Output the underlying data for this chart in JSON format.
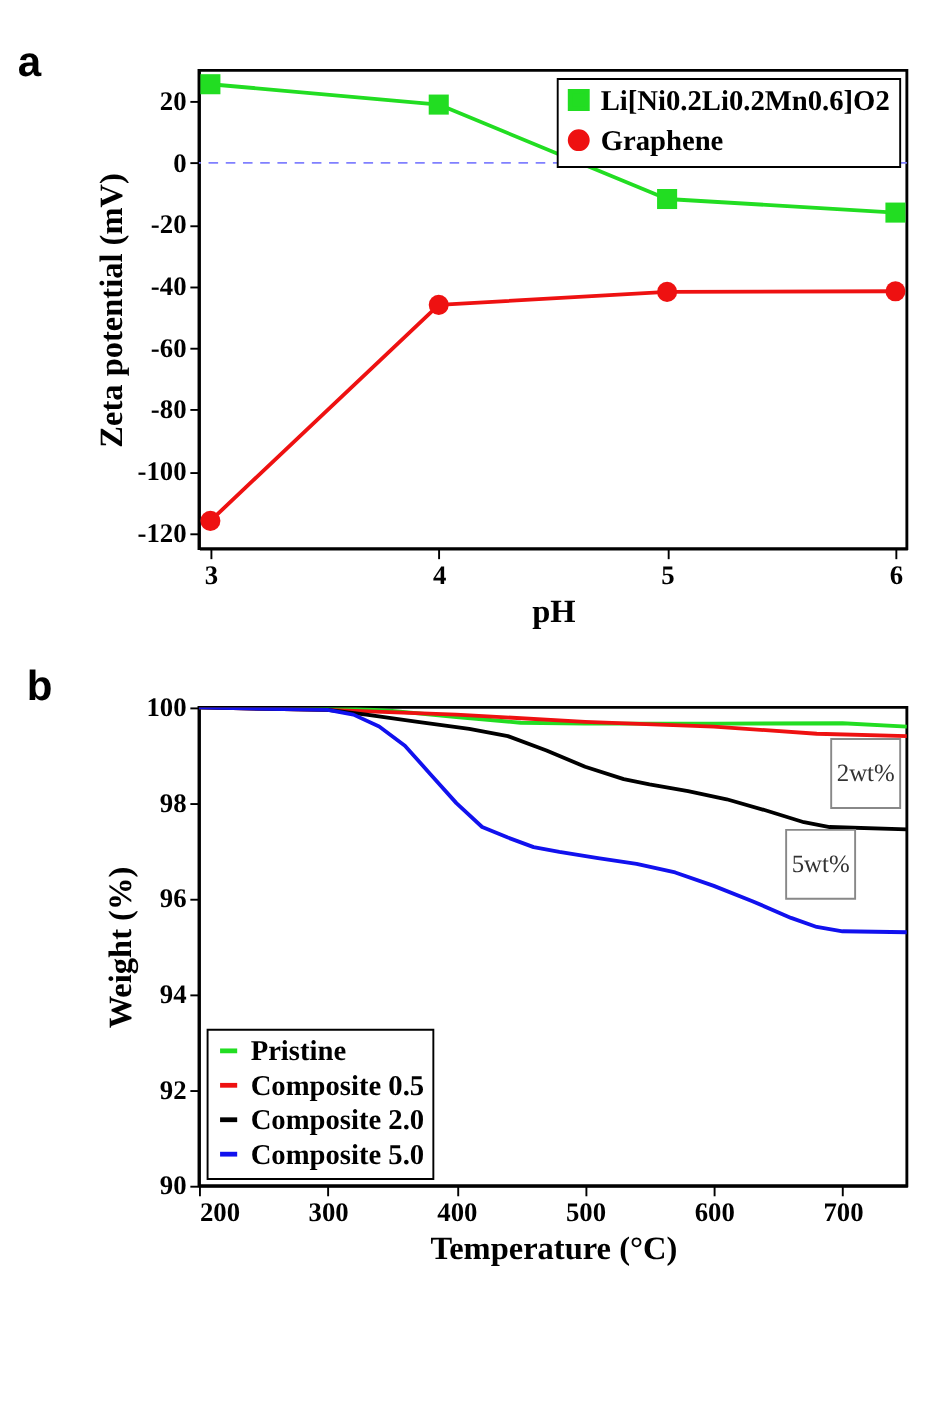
{
  "chart_data": [
    {
      "type": "line",
      "title": "a",
      "xlabel": "pH",
      "ylabel": "Zeta potential (mV)",
      "x": [
        3,
        4,
        5,
        6
      ],
      "xlim": [
        2.95,
        6.05
      ],
      "xticks": [
        3,
        4,
        5,
        6
      ],
      "ylim": [
        -125,
        30
      ],
      "yticks": [
        -120,
        -100,
        -80,
        -60,
        -40,
        -20,
        0,
        20
      ],
      "grid": false,
      "legend": "top right",
      "series": [
        {
          "name": "Li[Ni0.2Li0.2Mn0.6]O2",
          "color": "#22dd22",
          "marker": "square",
          "values": [
            25.5,
            18.9,
            -11.7,
            -16.1
          ]
        },
        {
          "name": "Graphene",
          "color": "#ee1111",
          "marker": "circle",
          "values": [
            -116,
            -46,
            -41.8,
            -41.6
          ]
        }
      ],
      "ref_lines": [
        {
          "axis": "y",
          "value": 0,
          "color": "#8080ff",
          "line_style": "dashed"
        }
      ]
    },
    {
      "type": "line",
      "title": "b",
      "xlabel": "Temperature (°C)",
      "ylabel": "Weight (%)",
      "xlim": [
        200,
        750
      ],
      "xticks": [
        200,
        300,
        400,
        500,
        600,
        700
      ],
      "ylim": [
        90,
        100
      ],
      "yticks": [
        90,
        92,
        94,
        96,
        98,
        100
      ],
      "grid": false,
      "legend": "bottom left",
      "marker": "none",
      "series": [
        {
          "name": "Pristine",
          "color": "#22dd22",
          "x": [
            200,
            300,
            350,
            400,
            450,
            500,
            600,
            700,
            750
          ],
          "values": [
            100,
            100,
            99.93,
            99.8,
            99.68,
            99.66,
            99.66,
            99.67,
            99.6
          ]
        },
        {
          "name": "Composite 0.5",
          "color": "#ee1111",
          "x": [
            200,
            300,
            400,
            500,
            600,
            680,
            750
          ],
          "values": [
            100,
            99.95,
            99.85,
            99.7,
            99.6,
            99.45,
            99.4
          ]
        },
        {
          "name": "Composite 2.0",
          "color": "#000000",
          "x": [
            200,
            300,
            330,
            370,
            410,
            440,
            470,
            500,
            530,
            550,
            580,
            610,
            640,
            670,
            690,
            750
          ],
          "values": [
            100,
            99.95,
            99.85,
            99.7,
            99.55,
            99.4,
            99.1,
            98.76,
            98.5,
            98.39,
            98.25,
            98.08,
            97.85,
            97.6,
            97.5,
            97.45
          ]
        },
        {
          "name": "Composite 5.0",
          "color": "#1111ee",
          "x": [
            200,
            300,
            320,
            340,
            360,
            380,
            400,
            420,
            440,
            460,
            480,
            510,
            540,
            570,
            600,
            630,
            660,
            680,
            700,
            750
          ],
          "values": [
            100,
            99.95,
            99.85,
            99.6,
            99.2,
            98.6,
            98.0,
            97.5,
            97.28,
            97.08,
            96.98,
            96.85,
            96.73,
            96.55,
            96.27,
            95.95,
            95.6,
            95.41,
            95.32,
            95.3
          ]
        }
      ],
      "annotations": [
        {
          "text": "2wt%",
          "x": 718,
          "y": 98.62
        },
        {
          "text": "5wt%",
          "x": 683,
          "y": 96.72
        }
      ]
    }
  ]
}
